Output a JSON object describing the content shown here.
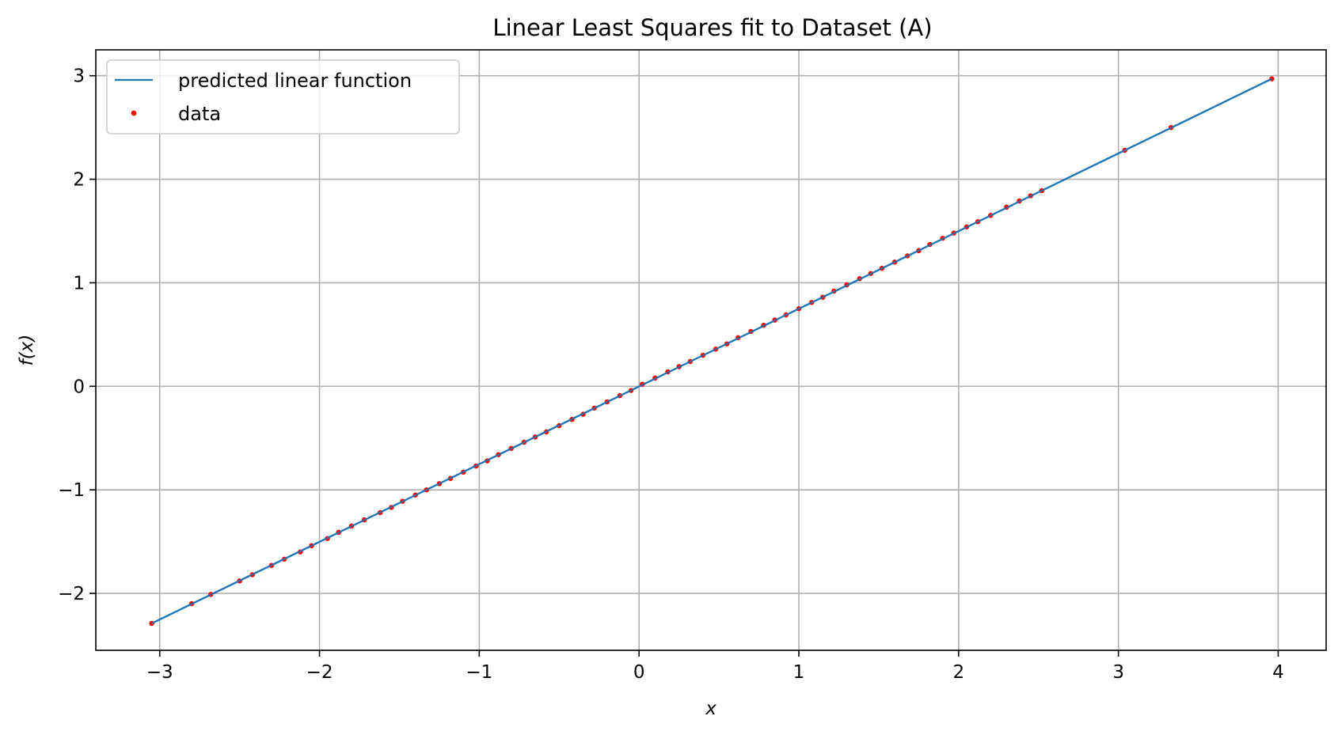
{
  "chart_data": {
    "type": "scatter",
    "title": "Linear Least Squares fit to Dataset (A)",
    "xlabel": "x",
    "ylabel": "f(x)",
    "xlim": [
      -3.4,
      4.3
    ],
    "ylim": [
      -2.55,
      3.25
    ],
    "x_ticks": [
      -3,
      -2,
      -1,
      0,
      1,
      2,
      3,
      4
    ],
    "x_tick_labels": [
      "−3",
      "−2",
      "−1",
      "0",
      "1",
      "2",
      "3",
      "4"
    ],
    "y_ticks": [
      -2,
      -1,
      0,
      1,
      2,
      3
    ],
    "y_tick_labels": [
      "−2",
      "−1",
      "0",
      "1",
      "2",
      "3"
    ],
    "grid": true,
    "legend": {
      "position": "top-left",
      "entries": [
        {
          "label": "predicted linear function",
          "kind": "line",
          "color": "#1f77b4"
        },
        {
          "label": "data",
          "kind": "marker",
          "color": "#ff0000"
        }
      ]
    },
    "series": [
      {
        "name": "predicted linear function",
        "kind": "line",
        "color": "#1f77b4",
        "x": [
          -3.05,
          3.96
        ],
        "y": [
          -2.29,
          2.97
        ]
      },
      {
        "name": "data",
        "kind": "scatter",
        "color": "#ff0000",
        "x": [
          -3.05,
          -2.8,
          -2.68,
          -2.5,
          -2.42,
          -2.3,
          -2.22,
          -2.12,
          -2.05,
          -1.95,
          -1.88,
          -1.8,
          -1.72,
          -1.62,
          -1.55,
          -1.48,
          -1.4,
          -1.33,
          -1.25,
          -1.18,
          -1.1,
          -1.02,
          -0.95,
          -0.88,
          -0.8,
          -0.72,
          -0.65,
          -0.58,
          -0.5,
          -0.42,
          -0.35,
          -0.28,
          -0.2,
          -0.12,
          -0.05,
          0.02,
          0.1,
          0.18,
          0.25,
          0.32,
          0.4,
          0.48,
          0.55,
          0.62,
          0.7,
          0.78,
          0.85,
          0.92,
          1.0,
          1.08,
          1.15,
          1.22,
          1.3,
          1.38,
          1.45,
          1.52,
          1.6,
          1.68,
          1.75,
          1.82,
          1.9,
          1.97,
          2.05,
          2.12,
          2.2,
          2.3,
          2.38,
          2.45,
          2.52,
          3.04,
          3.33,
          3.96
        ],
        "y": [
          -2.29,
          -2.1,
          -2.01,
          -1.88,
          -1.82,
          -1.73,
          -1.67,
          -1.6,
          -1.54,
          -1.47,
          -1.41,
          -1.35,
          -1.29,
          -1.22,
          -1.17,
          -1.11,
          -1.05,
          -1.0,
          -0.94,
          -0.89,
          -0.83,
          -0.77,
          -0.72,
          -0.66,
          -0.6,
          -0.54,
          -0.49,
          -0.44,
          -0.38,
          -0.32,
          -0.27,
          -0.21,
          -0.15,
          -0.09,
          -0.04,
          0.02,
          0.08,
          0.14,
          0.19,
          0.24,
          0.3,
          0.36,
          0.41,
          0.47,
          0.53,
          0.59,
          0.64,
          0.69,
          0.75,
          0.81,
          0.86,
          0.92,
          0.98,
          1.04,
          1.09,
          1.14,
          1.2,
          1.26,
          1.31,
          1.37,
          1.43,
          1.48,
          1.54,
          1.59,
          1.65,
          1.73,
          1.79,
          1.84,
          1.89,
          2.28,
          2.5,
          2.97
        ]
      }
    ]
  }
}
